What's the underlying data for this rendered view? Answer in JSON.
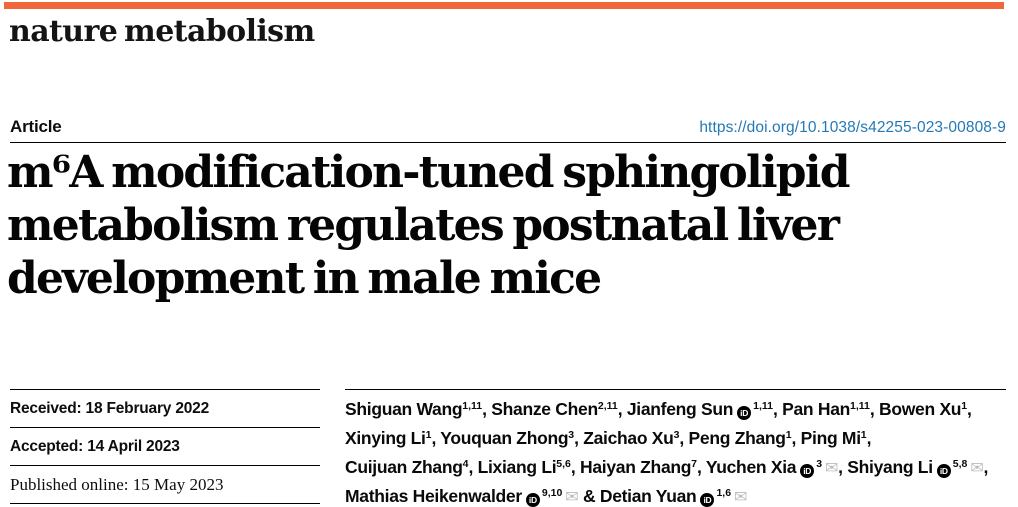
{
  "masthead": {
    "journal_name": "nature metabolism",
    "accent_color": "#F2673A"
  },
  "article_header": {
    "kicker": "Article",
    "doi_url": "https://doi.org/10.1038/s42255-023-00808-9",
    "doi_color": "#2379B7"
  },
  "title": {
    "lines": [
      "m⁶A modification-tuned sphingolipid",
      "metabolism regulates postnatal liver",
      "development in male mice"
    ]
  },
  "dates": [
    {
      "label": "Received",
      "value": "18 February 2022",
      "font": "sans"
    },
    {
      "label": "Accepted",
      "value": "14 April 2023",
      "font": "sans"
    },
    {
      "label": "Published online",
      "value": "15 May 2023",
      "font": "serif"
    }
  ],
  "authors": {
    "orcid_icon_label": "iD",
    "email_icon_glyph": "✉",
    "lines": [
      [
        {
          "name": "Shiguan Wang",
          "sup": "1,11",
          "orcid": false,
          "email": false,
          "sep": ", "
        },
        {
          "name": "Shanze Chen",
          "sup": "2,11",
          "orcid": false,
          "email": false,
          "sep": ", "
        },
        {
          "name": "Jianfeng Sun",
          "sup": "1,11",
          "orcid": true,
          "email": false,
          "sep": ", "
        },
        {
          "name": "Pan Han",
          "sup": "1,11",
          "orcid": false,
          "email": false,
          "sep": ", "
        },
        {
          "name": "Bowen Xu",
          "sup": "1",
          "orcid": false,
          "email": false,
          "sep": ","
        }
      ],
      [
        {
          "name": "Xinying Li",
          "sup": "1",
          "orcid": false,
          "email": false,
          "sep": ", "
        },
        {
          "name": "Youquan Zhong",
          "sup": "3",
          "orcid": false,
          "email": false,
          "sep": ", "
        },
        {
          "name": "Zaichao Xu",
          "sup": "3",
          "orcid": false,
          "email": false,
          "sep": ", "
        },
        {
          "name": "Peng Zhang",
          "sup": "1",
          "orcid": false,
          "email": false,
          "sep": ", "
        },
        {
          "name": "Ping Mi",
          "sup": "1",
          "orcid": false,
          "email": false,
          "sep": ","
        }
      ],
      [
        {
          "name": "Cuijuan Zhang",
          "sup": "4",
          "orcid": false,
          "email": false,
          "sep": ", "
        },
        {
          "name": "Lixiang Li",
          "sup": "5,6",
          "orcid": false,
          "email": false,
          "sep": ", "
        },
        {
          "name": "Haiyan Zhang",
          "sup": "7",
          "orcid": false,
          "email": false,
          "sep": ", "
        },
        {
          "name": "Yuchen Xia",
          "sup": "3",
          "orcid": true,
          "email": true,
          "sep": ", "
        },
        {
          "name": "Shiyang Li",
          "sup": "5,8",
          "orcid": true,
          "email": true,
          "sep": ","
        }
      ],
      [
        {
          "name": "Mathias Heikenwalder",
          "sup": "9,10",
          "orcid": true,
          "email": true,
          "sep": " & "
        },
        {
          "name": "Detian Yuan",
          "sup": "1,6",
          "orcid": true,
          "email": true,
          "sep": ""
        }
      ]
    ]
  }
}
